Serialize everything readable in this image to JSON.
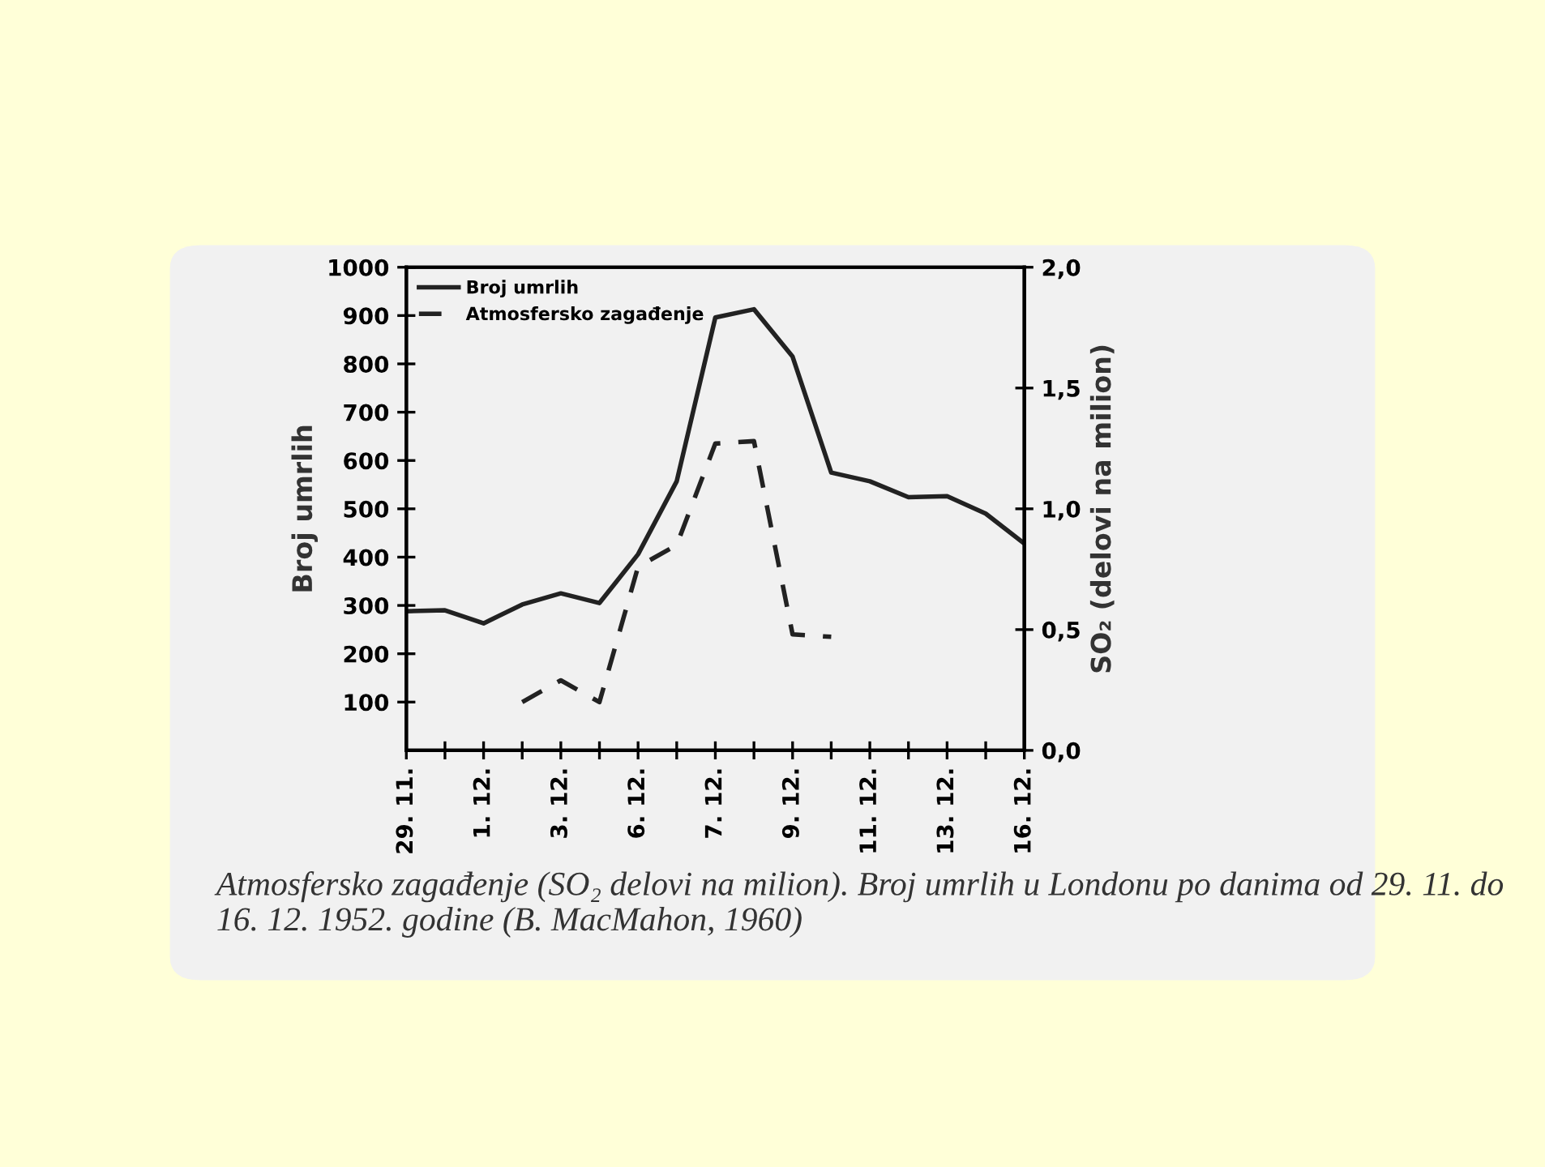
{
  "chart_data": {
    "type": "line",
    "categories": [
      "29. 11.",
      null,
      "1. 12.",
      null,
      "3. 12.",
      null,
      "6. 12.",
      null,
      "7. 12.",
      null,
      "9. 12.",
      null,
      "11. 12.",
      null,
      "13. 12.",
      null,
      "16. 12."
    ],
    "series": [
      {
        "name": "Broj umrlih",
        "color": "#222222",
        "line_style": "solid",
        "values": [
          288,
          290,
          263,
          302,
          325,
          305,
          406,
          557,
          896,
          913,
          815,
          575,
          557,
          524,
          526,
          490,
          428
        ]
      },
      {
        "name": "Atmosfersko zagađenje",
        "color": "#222222",
        "line_style": "dashed",
        "axis": "y2",
        "values": [
          null,
          null,
          null,
          0.2,
          0.29,
          0.2,
          0.76,
          0.85,
          1.27,
          1.28,
          0.48,
          0.47,
          null,
          null,
          null,
          null,
          null
        ]
      }
    ],
    "ylabel": "Broj umrlih",
    "y2label": "SO₂ (delovi na milion)",
    "ylim": [
      0,
      1000
    ],
    "yticks": [
      100,
      200,
      300,
      400,
      500,
      600,
      700,
      800,
      900,
      1000
    ],
    "y2lim": [
      0,
      2
    ],
    "y2ticks": [
      {
        "value": 0,
        "label": "0,0"
      },
      {
        "value": 0.5,
        "label": "0,5"
      },
      {
        "value": 1,
        "label": "1,0"
      },
      {
        "value": 1.5,
        "label": "1,5"
      },
      {
        "value": 2,
        "label": "2,0"
      }
    ],
    "legend": "top left",
    "grid": false,
    "marker": "none",
    "annotations": [
      "Atmosfersko zagađenje (SO₂ delovi na milion). Broj umrlih u Londonu po danima od 29. 11. do 16. 12. 1952. godine (B. MacMahon, 1960)"
    ]
  }
}
